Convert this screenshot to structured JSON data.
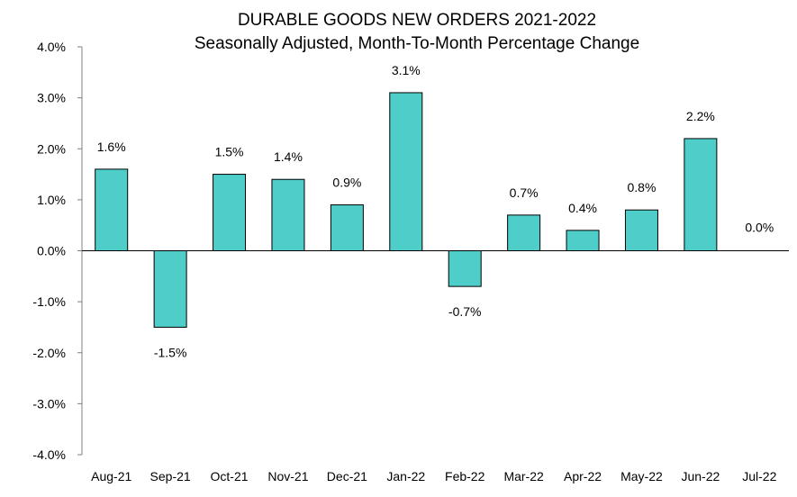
{
  "chart_data": {
    "type": "bar",
    "title": "DURABLE GOODS NEW ORDERS 2021-2022",
    "subtitle": "Seasonally Adjusted,  Month-To-Month Percentage Change",
    "xlabel": "",
    "ylabel": "",
    "categories": [
      "Aug-21",
      "Sep-21",
      "Oct-21",
      "Nov-21",
      "Dec-21",
      "Jan-22",
      "Feb-22",
      "Mar-22",
      "Apr-22",
      "May-22",
      "Jun-22",
      "Jul-22"
    ],
    "values": [
      1.6,
      -1.5,
      1.5,
      1.4,
      0.9,
      3.1,
      -0.7,
      0.7,
      0.4,
      0.8,
      2.2,
      0.0
    ],
    "data_labels": [
      "1.6%",
      "-1.5%",
      "1.5%",
      "1.4%",
      "0.9%",
      "3.1%",
      "-0.7%",
      "0.7%",
      "0.4%",
      "0.8%",
      "2.2%",
      "0.0%"
    ],
    "ylim": [
      -4,
      4
    ],
    "yticks": [
      4,
      3,
      2,
      1,
      0,
      -1,
      -2,
      -3,
      -4
    ],
    "ytick_labels": [
      "4.0%",
      "3.0%",
      "2.0%",
      "1.0%",
      "0.0%",
      "-1.0%",
      "-2.0%",
      "-3.0%",
      "-4.0%"
    ],
    "grid": false,
    "legend": "none",
    "bar_color": "#4ECDC9",
    "bar_edge_color": "#000000"
  }
}
